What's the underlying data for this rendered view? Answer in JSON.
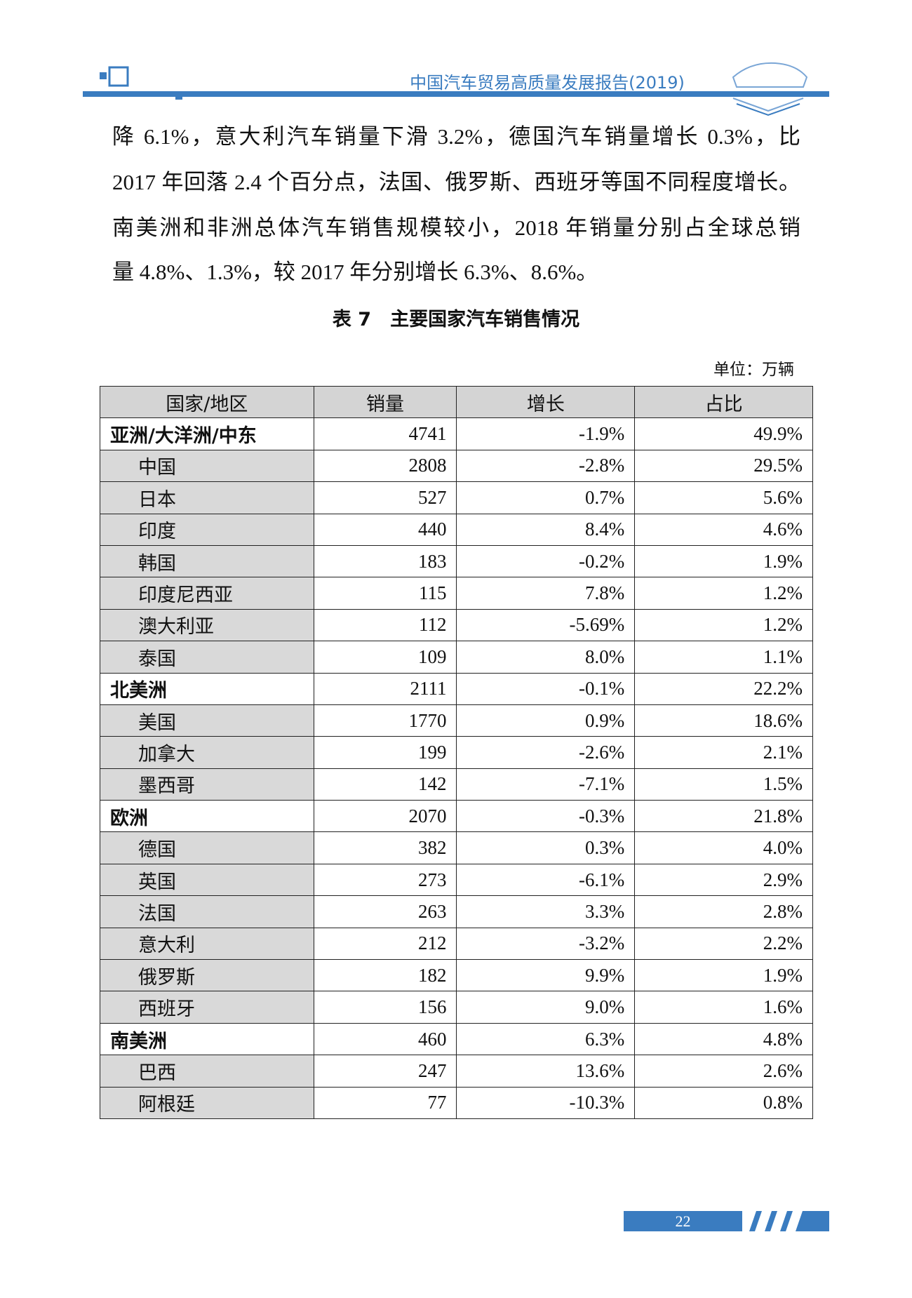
{
  "header": {
    "title": "中国汽车贸易高质量发展报告(2019)"
  },
  "paragraph_lines": [
    "降 6.1%，意大利汽车销量下滑 3.2%，德国汽车销量增长 0.3%，比",
    "2017 年回落 2.4 个百分点，法国、俄罗斯、西班牙等国不同程度增长。",
    "南美洲和非洲总体汽车销售规模较小，2018 年销量分别占全球总销",
    "量 4.8%、1.3%，较 2017 年分别增长 6.3%、8.6%。"
  ],
  "table": {
    "caption": "表 7　主要国家汽车销售情况",
    "unit": "单位：万辆",
    "header": [
      "国家/地区",
      "销量",
      "增长",
      "占比"
    ],
    "groups": [
      {
        "row": [
          "亚洲/大洋洲/中东",
          4741,
          "-1.9%",
          "49.9%"
        ],
        "children": [
          [
            "中国",
            2808,
            "-2.8%",
            "29.5%"
          ],
          [
            "日本",
            527,
            "0.7%",
            "5.6%"
          ],
          [
            "印度",
            440,
            "8.4%",
            "4.6%"
          ],
          [
            "韩国",
            183,
            "-0.2%",
            "1.9%"
          ],
          [
            "印度尼西亚",
            115,
            "7.8%",
            "1.2%"
          ],
          [
            "澳大利亚",
            112,
            "-5.69%",
            "1.2%"
          ],
          [
            "泰国",
            109,
            "8.0%",
            "1.1%"
          ]
        ]
      },
      {
        "row": [
          "北美洲",
          2111,
          "-0.1%",
          "22.2%"
        ],
        "children": [
          [
            "美国",
            1770,
            "0.9%",
            "18.6%"
          ],
          [
            "加拿大",
            199,
            "-2.6%",
            "2.1%"
          ],
          [
            "墨西哥",
            142,
            "-7.1%",
            "1.5%"
          ]
        ]
      },
      {
        "row": [
          "欧洲",
          2070,
          "-0.3%",
          "21.8%"
        ],
        "children": [
          [
            "德国",
            382,
            "0.3%",
            "4.0%"
          ],
          [
            "英国",
            273,
            "-6.1%",
            "2.9%"
          ],
          [
            "法国",
            263,
            "3.3%",
            "2.8%"
          ],
          [
            "意大利",
            212,
            "-3.2%",
            "2.2%"
          ],
          [
            "俄罗斯",
            182,
            "9.9%",
            "1.9%"
          ],
          [
            "西班牙",
            156,
            "9.0%",
            "1.6%"
          ]
        ]
      },
      {
        "row": [
          "南美洲",
          460,
          "6.3%",
          "4.8%"
        ],
        "children": [
          [
            "巴西",
            247,
            "13.6%",
            "2.6%"
          ],
          [
            "阿根廷",
            77,
            "-10.3%",
            "0.8%"
          ]
        ]
      }
    ]
  },
  "footer": {
    "page_number": "22"
  }
}
